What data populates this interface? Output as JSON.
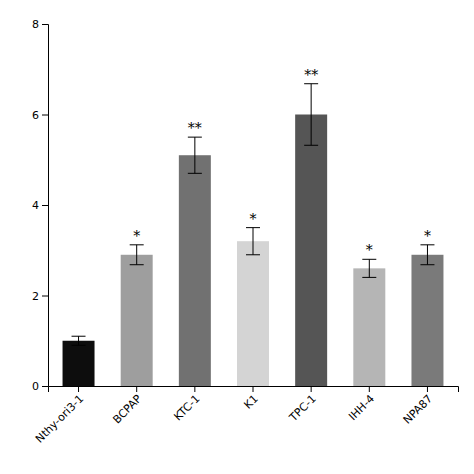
{
  "chart_data": {
    "type": "bar",
    "categories": [
      "Nthy-ori3-1",
      "BCPAP",
      "KTC-1",
      "K1",
      "TPC-1",
      "IHH-4",
      "NPA87"
    ],
    "values": [
      1.0,
      2.9,
      5.1,
      3.2,
      6.0,
      2.6,
      2.9
    ],
    "errors": [
      0.1,
      0.22,
      0.4,
      0.3,
      0.68,
      0.2,
      0.22
    ],
    "significance": [
      null,
      "*",
      "**",
      "*",
      "**",
      "*",
      "*"
    ],
    "colors": [
      "#0d0d0d",
      "#9e9e9e",
      "#717171",
      "#d4d4d4",
      "#555555",
      "#b5b5b5",
      "#7a7a7a"
    ],
    "ylim": [
      0,
      8
    ],
    "yticks": [
      0,
      2,
      4,
      6,
      8
    ],
    "grid": false
  }
}
